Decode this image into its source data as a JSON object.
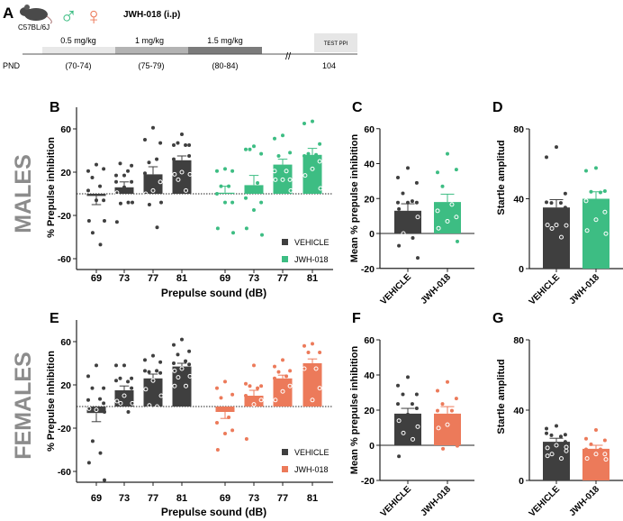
{
  "panel_a": {
    "letter": "A",
    "strain": "C57BL/6J",
    "male_symbol": "♂",
    "female_symbol": "♀",
    "treatment": "JWH-018 (i.p)",
    "doses": [
      "0.5 mg/kg",
      "1 mg/kg",
      "1.5 mg/kg"
    ],
    "dose_days": [
      "(70-74)",
      "(75-79)",
      "(80-84)"
    ],
    "pnd_label": "PND",
    "break_mark": "//",
    "test_label": "TEST PPI",
    "test_day": "104",
    "dose_colors": [
      "#e8e8e8",
      "#b3b3b3",
      "#7b7b7b"
    ]
  },
  "row_labels": {
    "males": "MALES",
    "females": "FEMALES"
  },
  "colors": {
    "vehicle": "#3f3f3f",
    "jwh_male": "#3dbd83",
    "jwh_female": "#ec7a5a",
    "row_label": "#8c8c8c"
  },
  "chart_data": [
    {
      "panel": "B",
      "type": "bar",
      "ylabel": "% Prepulse inhibition",
      "xlabel": "Prepulse sound (dB)",
      "ylim": [
        -70,
        80
      ],
      "yticks": [
        60,
        20,
        -20,
        -60
      ],
      "zero_line": "dotted",
      "legend": "bottom-right",
      "categories": [
        "69",
        "73",
        "77",
        "81"
      ],
      "series": [
        {
          "name": "VEHICLE",
          "color": "#3f3f3f",
          "values": [
            -2,
            6,
            18,
            31
          ],
          "sem": [
            8,
            5,
            7,
            4
          ],
          "points": [
            [
              27,
              21,
              23,
              15,
              7,
              3,
              -6,
              -6,
              -25,
              -25,
              -36,
              -47
            ],
            [
              17,
              17,
              26,
              28,
              21,
              11,
              11,
              6,
              1,
              -8,
              -9,
              -8,
              -26
            ],
            [
              61,
              50,
              47,
              29,
              32,
              19,
              11,
              3,
              0,
              -8,
              -10,
              -31
            ],
            [
              55,
              45,
              45,
              47,
              45,
              32,
              35,
              20,
              18,
              18,
              13,
              3
            ]
          ]
        },
        {
          "name": "JWH-018",
          "color": "#3dbd83",
          "values": [
            1,
            8,
            27,
            36
          ],
          "sem": [
            6,
            9,
            5,
            6
          ],
          "points": [
            [
              23,
              21,
              21,
              7,
              7,
              0,
              -8,
              -8,
              -32,
              -36
            ],
            [
              44,
              41,
              37,
              41,
              10,
              -4,
              -8,
              -15,
              -32,
              -38
            ],
            [
              54,
              51,
              38,
              35,
              21,
              21,
              13,
              13,
              13,
              3
            ],
            [
              67,
              65,
              46,
              37,
              36,
              35,
              30,
              23,
              17,
              5
            ]
          ]
        }
      ]
    },
    {
      "panel": "C",
      "type": "bar",
      "ylabel": "Mean % prepulse inhibition",
      "ylim": [
        -20,
        60
      ],
      "yticks": [
        60,
        40,
        20,
        0,
        -20
      ],
      "zero_line": "solid",
      "categories": [
        "VEHICLE",
        "JWH-018"
      ],
      "values": [
        13,
        18
      ],
      "sem": [
        4,
        4.5
      ],
      "colors": [
        "#3f3f3f",
        "#3dbd83"
      ],
      "points": [
        [
          37.5,
          32,
          29,
          23,
          18.5,
          17.7,
          17.7,
          17.7,
          14,
          9.4,
          0,
          -2.6,
          -7,
          -14
        ],
        [
          45.6,
          35,
          36.6,
          27,
          16.6,
          13,
          9.4,
          7,
          3,
          -4.6
        ]
      ]
    },
    {
      "panel": "D",
      "type": "bar",
      "ylabel": "Startle amplitud",
      "ylim": [
        0,
        80
      ],
      "yticks": [
        80,
        40,
        0
      ],
      "categories": [
        "VEHICLE",
        "JWH-018"
      ],
      "values": [
        35,
        40
      ],
      "sem": [
        4.5,
        4
      ],
      "colors": [
        "#3f3f3f",
        "#3dbd83"
      ],
      "points": [
        [
          69.6,
          63.8,
          43,
          37.6,
          37.6,
          38,
          35,
          25,
          25,
          24.7,
          23,
          18
        ],
        [
          57.6,
          56,
          44.4,
          44,
          43.6,
          38.8,
          32.4,
          28,
          21.8,
          20
        ]
      ]
    },
    {
      "panel": "E",
      "type": "bar",
      "ylabel": "% Prepulse inhibition",
      "xlabel": "Prepulse sound (dB)",
      "ylim": [
        -70,
        80
      ],
      "yticks": [
        60,
        20,
        -20,
        -60
      ],
      "zero_line": "dotted",
      "legend": "bottom-right",
      "categories": [
        "69",
        "73",
        "77",
        "81"
      ],
      "series": [
        {
          "name": "VEHICLE",
          "color": "#3f3f3f",
          "values": [
            -6,
            15,
            26,
            37
          ],
          "sem": [
            8,
            4,
            4,
            3
          ],
          "points": [
            [
              38,
              28,
              17,
              17,
              7,
              6,
              3,
              -3,
              -2,
              -5,
              -32,
              -43,
              -52,
              -68
            ],
            [
              38,
              38,
              26,
              26,
              23,
              24,
              17,
              10,
              5,
              3,
              3,
              -5
            ],
            [
              47,
              43,
              41,
              32,
              33,
              33,
              31,
              24,
              16,
              10,
              1,
              0
            ],
            [
              62,
              57,
              51,
              48,
              42,
              40,
              39,
              35,
              33,
              28,
              27,
              19,
              19
            ]
          ]
        },
        {
          "name": "JWH-018",
          "color": "#ec7a5a",
          "values": [
            -5,
            10,
            26,
            40
          ],
          "sem": [
            6,
            5,
            3,
            4
          ],
          "points": [
            [
              23,
              17,
              11,
              8,
              -10,
              -15,
              -22,
              -25,
              -40
            ],
            [
              38,
              21,
              19,
              19,
              17,
              10,
              6,
              2,
              -30
            ],
            [
              43,
              37,
              33,
              32,
              28,
              26,
              19,
              14,
              6
            ],
            [
              58,
              56,
              50,
              50,
              35,
              35,
              17,
              6
            ]
          ]
        }
      ]
    },
    {
      "panel": "F",
      "type": "bar",
      "ylabel": "Mean % prepulse inhibition",
      "ylim": [
        -20,
        60
      ],
      "yticks": [
        60,
        40,
        20,
        0,
        -20
      ],
      "zero_line": "solid",
      "categories": [
        "VEHICLE",
        "JWH-018"
      ],
      "values": [
        18,
        18
      ],
      "sem": [
        3,
        4
      ],
      "colors": [
        "#3f3f3f",
        "#ec7a5a"
      ],
      "points": [
        [
          38.8,
          34,
          29,
          29,
          23.5,
          23.5,
          21,
          17.5,
          14,
          10.6,
          7,
          3.4,
          -6.3
        ],
        [
          36,
          31,
          26.6,
          23.5,
          19.7,
          19.7,
          17,
          11.7,
          9.8,
          -0.3,
          -2
        ]
      ]
    },
    {
      "panel": "G",
      "type": "bar",
      "ylabel": "Startle amplitud",
      "ylim": [
        0,
        80
      ],
      "yticks": [
        80,
        40,
        0
      ],
      "categories": [
        "VEHICLE",
        "JWH-018"
      ],
      "values": [
        22,
        18
      ],
      "sem": [
        2,
        2
      ],
      "colors": [
        "#3f3f3f",
        "#ec7a5a"
      ],
      "points": [
        [
          31,
          29.5,
          26,
          25.7,
          25,
          26.8,
          22,
          20,
          18.5,
          16.8,
          15,
          12.5,
          14,
          19
        ],
        [
          28.7,
          23.7,
          22.8,
          20.6,
          17.7,
          17.7,
          15,
          15,
          12.5,
          12
        ]
      ]
    }
  ]
}
